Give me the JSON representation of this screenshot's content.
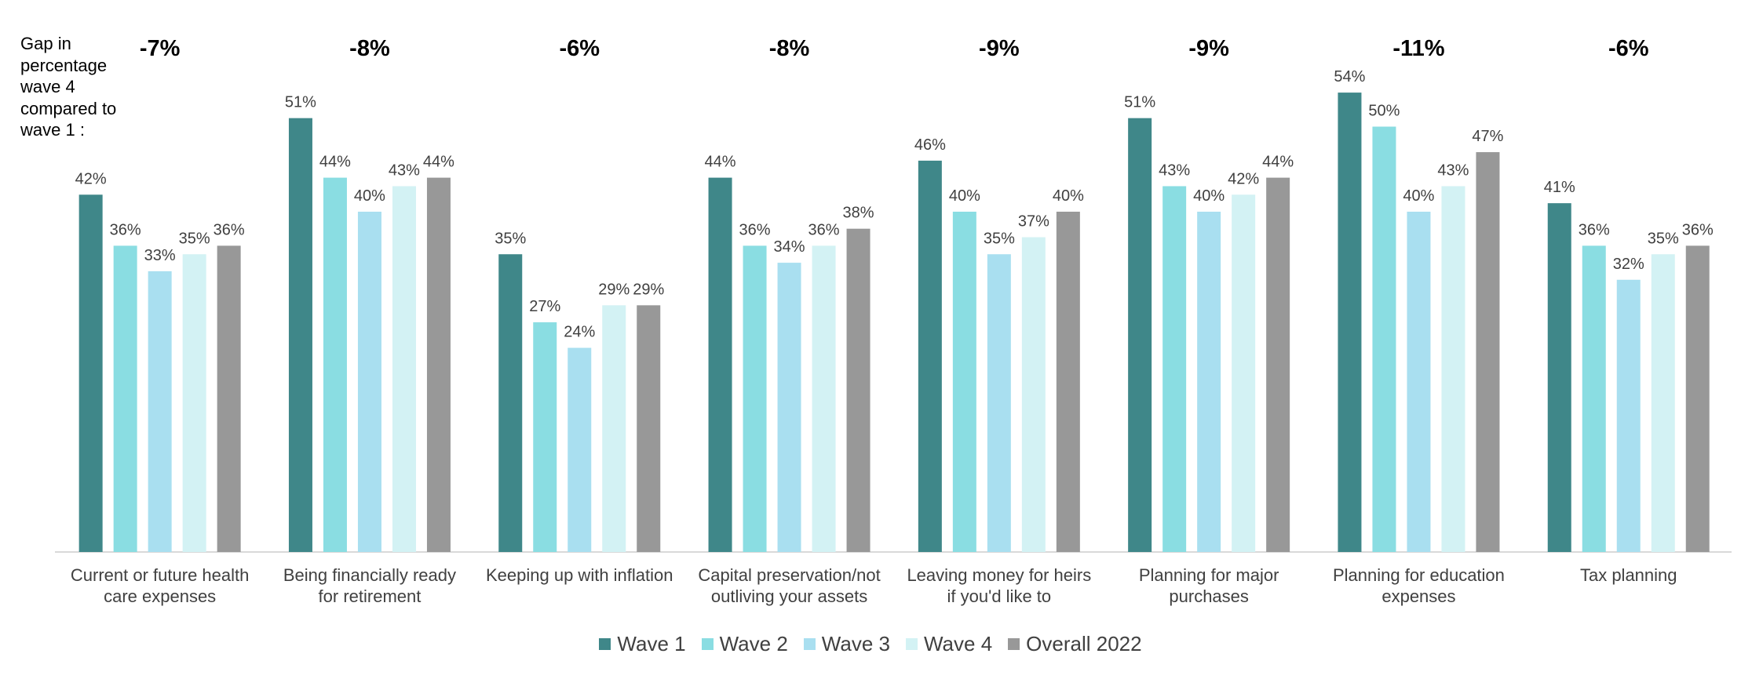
{
  "chart_data": {
    "type": "bar",
    "gap_caption": "Gap in\npercentage\nwave 4\ncompared to\nwave 1 :",
    "categories": [
      [
        "Current or future health",
        "care expenses"
      ],
      [
        "Being financially ready",
        "for retirement"
      ],
      [
        "Keeping up with inflation"
      ],
      [
        "Capital preservation/not",
        "outliving your assets"
      ],
      [
        "Leaving money for heirs",
        "if you'd like to"
      ],
      [
        "Planning for major",
        "purchases"
      ],
      [
        "Planning for education",
        "expenses"
      ],
      [
        "Tax planning"
      ]
    ],
    "gaps": [
      "-7%",
      "-8%",
      "-6%",
      "-8%",
      "-9%",
      "-9%",
      "-11%",
      "-6%"
    ],
    "series": [
      {
        "name": "Wave 1",
        "color": "#3f8789",
        "values": [
          42,
          51,
          35,
          44,
          46,
          51,
          54,
          41
        ]
      },
      {
        "name": "Wave 2",
        "color": "#8addE2",
        "values": [
          36,
          44,
          27,
          36,
          40,
          43,
          50,
          36
        ]
      },
      {
        "name": "Wave 3",
        "color": "#a9dff0",
        "values": [
          33,
          40,
          24,
          34,
          35,
          40,
          40,
          32
        ]
      },
      {
        "name": "Wave 4",
        "color": "#d3f2f4",
        "values": [
          35,
          43,
          29,
          36,
          37,
          42,
          43,
          35
        ]
      },
      {
        "name": "Overall 2022",
        "color": "#989898",
        "values": [
          36,
          44,
          29,
          38,
          40,
          44,
          47,
          36
        ]
      }
    ],
    "value_suffix": "%",
    "ylim": [
      0,
      60
    ],
    "grid": false,
    "legend_position": "bottom"
  }
}
